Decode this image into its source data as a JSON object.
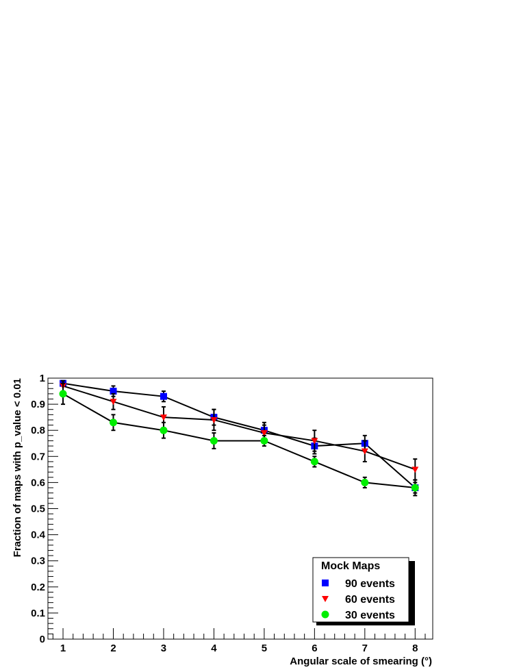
{
  "chart_data": {
    "type": "line",
    "title": "",
    "xlabel": "Angular scale of smearing (°)",
    "ylabel": "Fraction of maps with p_value < 0.01",
    "xlim": [
      0.7,
      8.35
    ],
    "ylim": [
      0,
      1
    ],
    "x": [
      1,
      2,
      3,
      4,
      5,
      6,
      7,
      8
    ],
    "x_ticks": [
      "1",
      "2",
      "3",
      "4",
      "5",
      "6",
      "7",
      "8"
    ],
    "y_ticks": [
      "0",
      "0.1",
      "0.2",
      "0.3",
      "0.4",
      "0.5",
      "0.6",
      "0.7",
      "0.8",
      "0.9",
      "1"
    ],
    "y_tick_values": [
      0,
      0.1,
      0.2,
      0.3,
      0.4,
      0.5,
      0.6,
      0.7,
      0.8,
      0.9,
      1
    ],
    "grid": false,
    "legend_position": "bottom-right",
    "legend_title": "Mock Maps",
    "series": [
      {
        "name": "90 events",
        "marker": "square",
        "color": "#0000ff",
        "values": [
          0.98,
          0.95,
          0.93,
          0.85,
          0.8,
          0.74,
          0.75,
          0.58
        ],
        "errors": [
          0.01,
          0.02,
          0.02,
          0.03,
          0.03,
          0.03,
          0.03,
          0.03
        ]
      },
      {
        "name": "60 events",
        "marker": "triangle-down",
        "color": "#ff0000",
        "values": [
          0.97,
          0.91,
          0.85,
          0.84,
          0.79,
          0.76,
          0.72,
          0.65
        ],
        "errors": [
          0.02,
          0.03,
          0.04,
          0.04,
          0.03,
          0.04,
          0.04,
          0.04
        ]
      },
      {
        "name": "30 events",
        "marker": "circle",
        "color": "#00ee00",
        "values": [
          0.94,
          0.83,
          0.8,
          0.76,
          0.76,
          0.68,
          0.6,
          0.58
        ],
        "errors": [
          0.04,
          0.03,
          0.03,
          0.03,
          0.02,
          0.02,
          0.02,
          0.02
        ]
      }
    ]
  }
}
